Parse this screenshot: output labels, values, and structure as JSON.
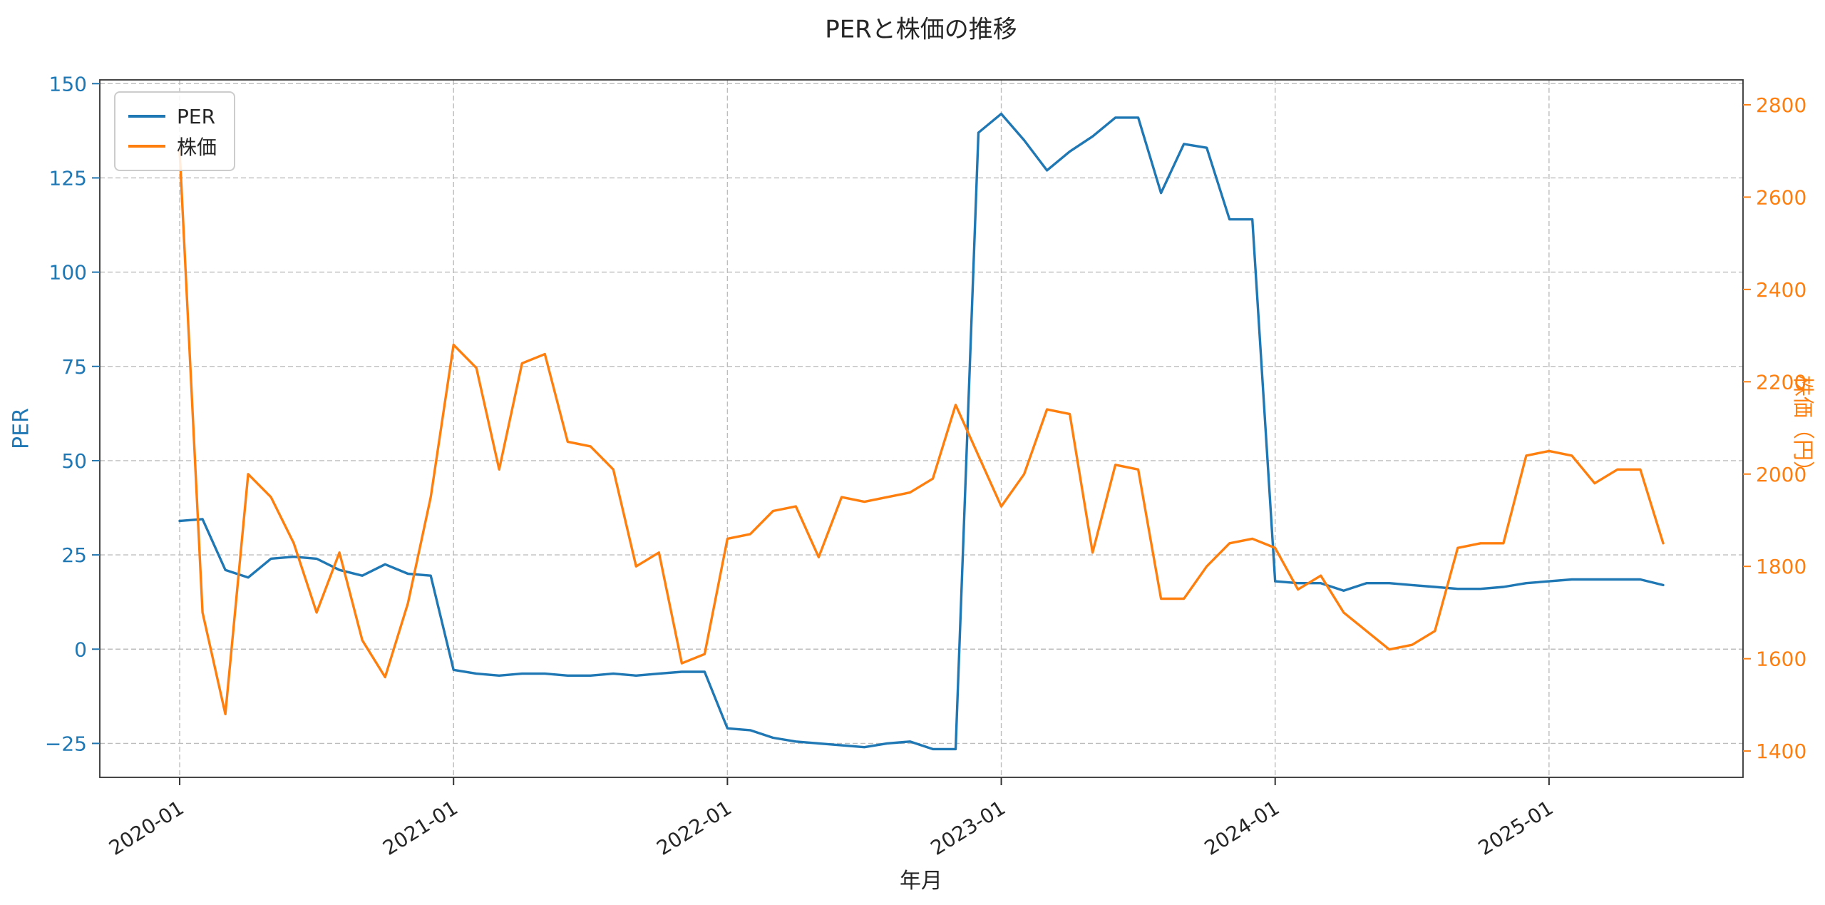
{
  "chart_data": {
    "type": "line",
    "title": "PERと株価の推移",
    "grid": true,
    "legend": {
      "position": "upper left",
      "entries": [
        "PER",
        "株価"
      ]
    },
    "x": [
      "2020-01",
      "2020-02",
      "2020-03",
      "2020-04",
      "2020-05",
      "2020-06",
      "2020-07",
      "2020-08",
      "2020-09",
      "2020-10",
      "2020-11",
      "2020-12",
      "2021-01",
      "2021-02",
      "2021-03",
      "2021-04",
      "2021-05",
      "2021-06",
      "2021-07",
      "2021-08",
      "2021-09",
      "2021-10",
      "2021-11",
      "2021-12",
      "2022-01",
      "2022-02",
      "2022-03",
      "2022-04",
      "2022-05",
      "2022-06",
      "2022-07",
      "2022-08",
      "2022-09",
      "2022-10",
      "2022-11",
      "2022-12",
      "2023-01",
      "2023-02",
      "2023-03",
      "2023-04",
      "2023-05",
      "2023-06",
      "2023-07",
      "2023-08",
      "2023-09",
      "2023-10",
      "2023-11",
      "2023-12",
      "2024-01",
      "2024-02",
      "2024-03",
      "2024-04",
      "2024-05",
      "2024-06",
      "2024-07",
      "2024-08",
      "2024-09",
      "2024-10",
      "2024-11",
      "2024-12",
      "2025-01",
      "2025-02",
      "2025-03",
      "2025-04",
      "2025-05",
      "2025-06"
    ],
    "series": [
      {
        "name": "PER",
        "axis": "left",
        "color": "#1f77b4",
        "values": [
          34,
          34.5,
          21,
          19,
          24,
          24.5,
          24,
          21,
          19.5,
          22.5,
          20,
          19.5,
          -5.5,
          -6.5,
          -7,
          -6.5,
          -6.5,
          -7,
          -7,
          -6.5,
          -7,
          -6.5,
          -6,
          -6,
          -21,
          -21.5,
          -23.5,
          -24.5,
          -25,
          -25.5,
          -26,
          -25,
          -24.5,
          -26.5,
          -26.5,
          137,
          142,
          135,
          127,
          132,
          136,
          141,
          141,
          121,
          134,
          133,
          114,
          114,
          18,
          17.5,
          17.5,
          15.5,
          17.5,
          17.5,
          17,
          16.5,
          16,
          16,
          16.5,
          17.5,
          18,
          18.5,
          18.5,
          18.5,
          18.5,
          17
        ]
      },
      {
        "name": "株価",
        "axis": "right",
        "color": "#ff7f0e",
        "values": [
          2700,
          1700,
          1480,
          2000,
          1950,
          1850,
          1700,
          1830,
          1640,
          1560,
          1720,
          1950,
          2280,
          2230,
          2010,
          2240,
          2260,
          2070,
          2060,
          2010,
          1800,
          1830,
          1590,
          1610,
          1860,
          1870,
          1920,
          1930,
          1820,
          1950,
          1940,
          1950,
          1960,
          1990,
          2150,
          2040,
          1930,
          2000,
          2140,
          2130,
          1830,
          2020,
          2010,
          1730,
          1730,
          1800,
          1850,
          1860,
          1840,
          1750,
          1780,
          1700,
          1660,
          1620,
          1630,
          1660,
          1840,
          1850,
          1850,
          2040,
          2050,
          2040,
          1980,
          2010,
          2010,
          1850
        ]
      }
    ],
    "axes": {
      "x": {
        "label": "年月",
        "tick_labels": [
          "2020-01",
          "2021-01",
          "2022-01",
          "2023-01",
          "2024-01",
          "2025-01"
        ],
        "tick_indices": [
          0,
          12,
          24,
          36,
          48,
          60
        ],
        "index_lim": [
          -3.5,
          68.5
        ]
      },
      "left": {
        "label": "PER",
        "color": "#1f77b4",
        "ticks": [
          -25,
          0,
          25,
          50,
          75,
          100,
          125,
          150
        ],
        "lim": [
          -34,
          151
        ]
      },
      "right": {
        "label": "株価（円）",
        "color": "#ff7f0e",
        "ticks": [
          1400,
          1600,
          1800,
          2000,
          2200,
          2400,
          2600,
          2800
        ],
        "lim": [
          1343,
          2854
        ]
      }
    }
  }
}
